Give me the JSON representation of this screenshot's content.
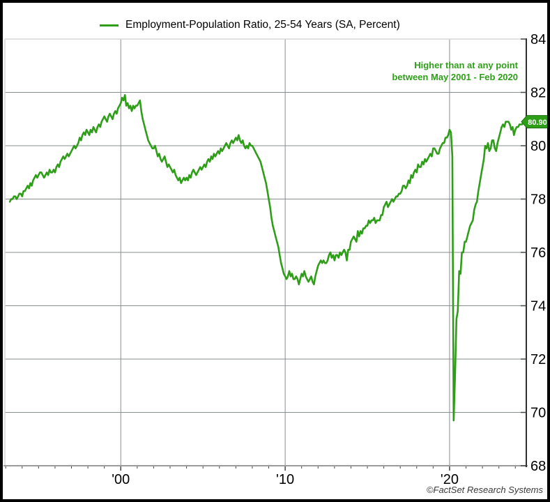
{
  "credit": "©FactSet Research Systems",
  "colors": {
    "line": "#2e9e19",
    "grid": "#878e8f",
    "border_light": "#d6d6d6",
    "axis_bottom": "#9b9b9b",
    "axis_right": "#2e2e2e",
    "tick": "#444444",
    "label": "#000000",
    "tag_bg": "#2e9e19",
    "tag_border": "#1c6e10",
    "tag_text": "#ffffff",
    "frame": "#000000"
  },
  "chart_data": {
    "type": "line",
    "title": "Employment-Population Ratio, 25-54 Years (SA, Percent)",
    "xlabel": "",
    "ylabel": "",
    "xlim": [
      1992.95,
      2024.667
    ],
    "ylim": [
      68,
      84
    ],
    "grid": true,
    "legend_position": "top",
    "y_ticks": [
      68,
      70,
      72,
      74,
      76,
      78,
      80,
      82,
      84
    ],
    "x_ticks": [
      {
        "value": 2000,
        "label": "'00"
      },
      {
        "value": 2010,
        "label": "'10"
      },
      {
        "value": 2020,
        "label": "'20"
      }
    ],
    "x_minor_ticks_every_years": 1,
    "annotation_lines": [
      "Higher than at any point",
      "between May 2001 - Feb 2020"
    ],
    "last_value": 80.9,
    "last_value_label": "80.90",
    "series": [
      {
        "name": "Employment-Population Ratio, 25-54 Years (SA, Percent)",
        "frequency": "monthly",
        "x_start_decimal_year": 1993.25,
        "values": [
          77.9,
          78.0,
          78.0,
          78.1,
          78.1,
          78.0,
          78.1,
          78.2,
          78.2,
          78.1,
          78.3,
          78.3,
          78.4,
          78.5,
          78.4,
          78.6,
          78.5,
          78.7,
          78.8,
          78.9,
          78.8,
          78.9,
          79.0,
          79.0,
          78.9,
          78.8,
          78.9,
          79.0,
          78.9,
          79.1,
          79.0,
          79.0,
          79.1,
          79.0,
          79.2,
          79.3,
          79.2,
          79.4,
          79.5,
          79.6,
          79.5,
          79.6,
          79.7,
          79.6,
          79.7,
          79.8,
          79.9,
          80.0,
          79.9,
          80.0,
          80.1,
          80.3,
          80.2,
          80.4,
          80.5,
          80.4,
          80.6,
          80.5,
          80.4,
          80.6,
          80.5,
          80.7,
          80.6,
          80.5,
          80.7,
          80.8,
          80.7,
          80.9,
          81.0,
          81.1,
          81.0,
          80.9,
          81.1,
          81.2,
          81.1,
          81.0,
          81.2,
          81.3,
          81.2,
          81.4,
          81.5,
          81.6,
          81.8,
          81.7,
          81.9,
          81.5,
          81.6,
          81.4,
          81.5,
          81.3,
          81.5,
          81.4,
          81.5,
          81.5,
          81.6,
          81.7,
          81.3,
          81.0,
          80.8,
          80.6,
          80.4,
          80.2,
          80.1,
          80.0,
          79.9,
          79.9,
          80.0,
          79.8,
          79.6,
          79.7,
          79.5,
          79.4,
          79.5,
          79.6,
          79.4,
          79.2,
          79.3,
          79.2,
          79.1,
          79.0,
          79.1,
          78.9,
          78.8,
          78.7,
          78.8,
          78.6,
          78.7,
          78.8,
          78.7,
          78.8,
          78.7,
          78.9,
          78.8,
          79.0,
          79.1,
          79.0,
          78.9,
          79.0,
          79.1,
          79.2,
          79.1,
          79.2,
          79.3,
          79.2,
          79.4,
          79.5,
          79.4,
          79.6,
          79.5,
          79.7,
          79.6,
          79.7,
          79.8,
          79.7,
          79.9,
          79.8,
          79.9,
          80.0,
          80.1,
          80.0,
          79.9,
          80.1,
          80.2,
          80.1,
          80.2,
          80.3,
          80.2,
          80.4,
          80.2,
          80.1,
          80.2,
          80.0,
          79.9,
          80.0,
          79.9,
          80.1,
          80.0,
          80.0,
          79.9,
          79.8,
          79.7,
          79.6,
          79.5,
          79.4,
          79.2,
          79.0,
          78.8,
          78.6,
          78.3,
          78.0,
          77.7,
          77.3,
          77.0,
          76.8,
          76.6,
          76.4,
          76.2,
          75.9,
          75.6,
          75.4,
          75.2,
          75.1,
          75.0,
          75.1,
          75.3,
          75.1,
          75.2,
          75.0,
          75.0,
          75.1,
          75.0,
          74.8,
          75.0,
          75.2,
          75.1,
          75.3,
          75.1,
          75.0,
          74.9,
          75.0,
          75.1,
          74.9,
          74.8,
          75.1,
          75.3,
          75.5,
          75.6,
          75.7,
          75.6,
          75.7,
          75.6,
          75.6,
          75.7,
          75.9,
          76.0,
          75.8,
          75.9,
          75.7,
          75.9,
          75.9,
          75.8,
          76.0,
          75.9,
          76.0,
          76.1,
          76.0,
          75.7,
          76.1,
          76.1,
          76.4,
          76.5,
          76.6,
          76.5,
          76.4,
          76.8,
          76.6,
          76.8,
          76.7,
          76.9,
          76.9,
          77.0,
          77.0,
          77.2,
          77.1,
          77.2,
          77.2,
          77.3,
          77.1,
          77.2,
          77.2,
          77.2,
          77.4,
          77.4,
          77.7,
          77.8,
          77.9,
          77.7,
          77.8,
          77.9,
          78.0,
          77.9,
          78.0,
          78.1,
          78.1,
          78.2,
          78.2,
          78.3,
          78.5,
          78.5,
          78.4,
          78.5,
          78.7,
          78.6,
          78.9,
          78.8,
          79.0,
          79.1,
          79.0,
          79.3,
          79.2,
          79.2,
          79.4,
          79.3,
          79.5,
          79.4,
          79.5,
          79.6,
          79.7,
          79.6,
          79.9,
          79.9,
          79.8,
          79.7,
          79.7,
          79.9,
          80.0,
          80.1,
          80.1,
          80.3,
          80.3,
          80.4,
          80.6,
          80.5,
          79.6,
          69.7,
          71.4,
          73.5,
          73.8,
          75.3,
          75.2,
          76.0,
          76.0,
          76.4,
          76.4,
          76.6,
          76.8,
          77.0,
          77.1,
          77.2,
          77.6,
          77.8,
          77.9,
          78.3,
          78.6,
          78.9,
          79.2,
          79.5,
          80.0,
          79.9,
          80.1,
          79.8,
          79.9,
          80.2,
          80.2,
          79.9,
          79.8,
          80.1,
          80.3,
          80.5,
          80.7,
          80.8,
          80.7,
          80.9,
          80.9,
          80.9,
          80.8,
          80.6,
          80.7,
          80.4,
          80.6,
          80.7,
          80.7,
          80.8,
          80.8,
          80.8,
          80.9,
          80.9
        ]
      }
    ]
  }
}
